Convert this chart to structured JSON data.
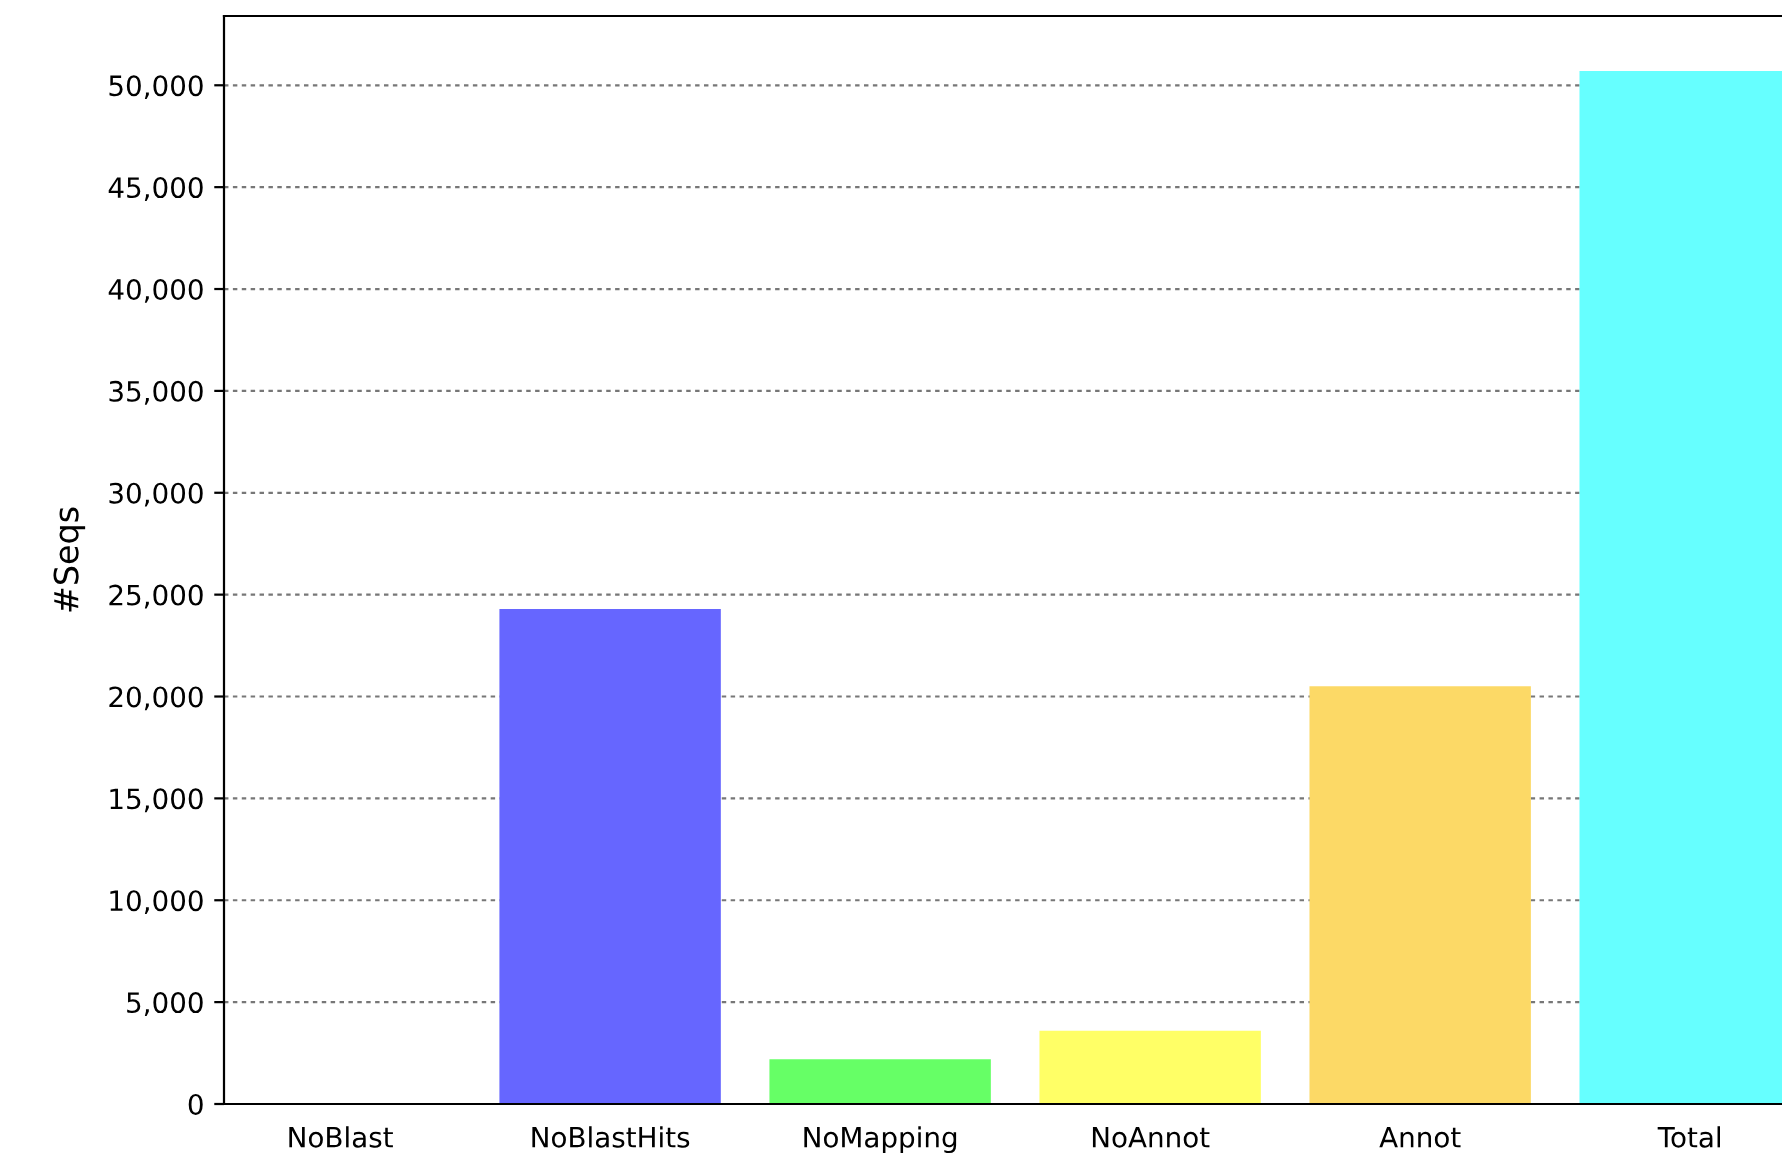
{
  "chart_data": {
    "type": "bar",
    "ylabel": "#Seqs",
    "categories": [
      "NoBlast",
      "NoBlastHits",
      "NoMapping",
      "NoAnnot",
      "Annot",
      "Total"
    ],
    "values": [
      0,
      24300,
      2200,
      3600,
      20500,
      50700
    ],
    "colors": [
      "#6666ff",
      "#6666ff",
      "#66ff66",
      "#ffff66",
      "#fcd966",
      "#66ffff"
    ],
    "ylim": [
      0,
      53400
    ],
    "yticks": [
      {
        "value": 0,
        "label": "0"
      },
      {
        "value": 5000,
        "label": "5,000"
      },
      {
        "value": 10000,
        "label": "10,000"
      },
      {
        "value": 15000,
        "label": "15,000"
      },
      {
        "value": 20000,
        "label": "20,000"
      },
      {
        "value": 25000,
        "label": "25,000"
      },
      {
        "value": 30000,
        "label": "30,000"
      },
      {
        "value": 35000,
        "label": "35,000"
      },
      {
        "value": 40000,
        "label": "40,000"
      },
      {
        "value": 45000,
        "label": "45,000"
      },
      {
        "value": 50000,
        "label": "50,000"
      }
    ],
    "grid": "y",
    "legend": false
  }
}
